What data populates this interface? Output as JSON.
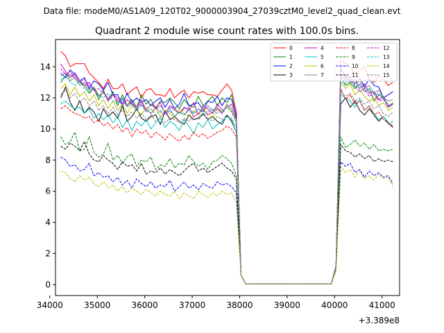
{
  "chart_data": {
    "type": "line",
    "suptitle": "Data file: modeM0/AS1A09_120T02_9000003904_27039cztM0_level2_quad_clean.evt",
    "title": "Quadrant 2 module wise count rates with 100.0s bins.",
    "xlabel": "",
    "ylabel": "",
    "x_offset_label": "+3.389e8",
    "xlim": [
      34120,
      41370
    ],
    "ylim": [
      -0.7,
      15.75
    ],
    "x_ticks": [
      34000,
      35000,
      36000,
      37000,
      38000,
      39000,
      40000,
      41000
    ],
    "x_tick_labels": [
      "34000",
      "35000",
      "36000",
      "37000",
      "38000",
      "39000",
      "40000",
      "41000"
    ],
    "y_ticks": [
      0,
      2,
      4,
      6,
      8,
      10,
      12,
      14
    ],
    "y_tick_labels": [
      "0",
      "2",
      "4",
      "6",
      "8",
      "10",
      "12",
      "14"
    ],
    "x_start": 34230,
    "x_step": 100,
    "gap_start": 37830,
    "gap_end": 39930,
    "legend_position": "upper right",
    "legend_columns": 4,
    "series": [
      {
        "name": "0",
        "color": "#ff0000",
        "dash": "solid",
        "values": [
          15.0,
          14.7,
          14.0,
          14.2,
          14.2,
          14.2,
          13.6,
          13.3,
          13.0,
          12.6,
          13.2,
          12.6,
          12.6,
          12.9,
          12.2,
          12.5,
          12.7,
          12.0,
          12.5,
          12.6,
          12.2,
          12.2,
          12.1,
          12.6,
          12.0,
          12.3,
          12.5,
          12.0,
          12.4,
          12.3,
          12.4,
          12.2,
          12.2,
          12.1,
          12.5,
          12.9,
          12.5,
          11.1,
          0.6
        ],
        "tail": [
          1.2,
          14.4,
          14.2,
          14.0,
          13.5,
          13.8,
          14.0,
          13.2,
          13.0,
          13.4,
          13.2,
          12.8,
          13.0
        ]
      },
      {
        "name": "1",
        "color": "#008000",
        "dash": "solid",
        "values": [
          13.0,
          13.4,
          13.5,
          13.3,
          13.0,
          12.8,
          12.3,
          12.6,
          11.9,
          12.5,
          11.8,
          12.4,
          11.5,
          12.2,
          11.5,
          11.9,
          11.4,
          12.2,
          11.6,
          11.9,
          11.3,
          11.8,
          11.7,
          12.0,
          11.7,
          11.3,
          11.9,
          11.5,
          11.4,
          12.1,
          11.5,
          11.8,
          12.1,
          11.5,
          12.0,
          11.7,
          12.2,
          10.8,
          0.6
        ],
        "tail": [
          1.2,
          13.3,
          12.8,
          13.0,
          12.6,
          12.9,
          12.4,
          12.6,
          11.8,
          12.2,
          12.0,
          11.4,
          11.7
        ]
      },
      {
        "name": "2",
        "color": "#0000ff",
        "dash": "solid",
        "values": [
          13.6,
          13.3,
          13.8,
          13.5,
          13.1,
          13.3,
          12.6,
          13.1,
          12.9,
          12.5,
          13.0,
          12.2,
          12.2,
          11.6,
          12.3,
          11.7,
          12.0,
          11.7,
          11.9,
          11.5,
          11.8,
          12.0,
          11.4,
          11.9,
          11.3,
          11.6,
          12.3,
          11.5,
          11.6,
          11.7,
          11.2,
          11.8,
          11.7,
          12.1,
          11.5,
          12.0,
          11.9,
          10.9,
          0.6
        ],
        "tail": [
          1.2,
          13.9,
          13.3,
          13.4,
          12.9,
          13.3,
          12.7,
          13.2,
          12.8,
          12.7,
          12.0,
          12.2,
          12.4
        ]
      },
      {
        "name": "3",
        "color": "#000000",
        "dash": "solid",
        "values": [
          12.0,
          12.7,
          11.7,
          11.2,
          11.8,
          11.0,
          11.4,
          11.1,
          10.5,
          11.3,
          10.8,
          11.1,
          10.7,
          11.5,
          10.5,
          10.8,
          11.3,
          10.7,
          10.5,
          10.8,
          10.9,
          10.3,
          11.2,
          10.6,
          10.8,
          10.5,
          10.3,
          10.9,
          10.6,
          10.7,
          11.0,
          10.6,
          10.8,
          10.5,
          10.3,
          10.9,
          10.5,
          9.8,
          0.6
        ],
        "tail": [
          1.1,
          11.6,
          12.0,
          11.4,
          11.8,
          11.2,
          10.9,
          11.3,
          10.9,
          10.5,
          10.8,
          10.4,
          10.1
        ]
      },
      {
        "name": "4",
        "color": "#c000c0",
        "dash": "solid",
        "values": [
          14.2,
          13.7,
          13.3,
          13.6,
          13.1,
          12.8,
          13.0,
          12.5,
          12.1,
          12.4,
          11.8,
          12.2,
          12.0,
          11.5,
          11.9,
          11.6,
          11.4,
          11.9,
          11.2,
          11.6,
          11.4,
          11.7,
          11.0,
          11.5,
          11.3,
          11.0,
          11.4,
          11.2,
          11.7,
          10.9,
          11.5,
          11.3,
          11.0,
          11.6,
          11.2,
          11.4,
          11.6,
          10.7,
          0.6
        ],
        "tail": [
          1.2,
          13.8,
          13.4,
          13.0,
          13.2,
          12.6,
          12.9,
          12.3,
          12.4,
          11.9,
          12.1,
          11.4,
          11.6
        ]
      },
      {
        "name": "5",
        "color": "#00bfbf",
        "dash": "solid",
        "values": [
          11.6,
          11.8,
          11.5,
          11.3,
          11.4,
          11.0,
          11.3,
          10.7,
          11.0,
          10.6,
          10.9,
          10.4,
          10.8,
          10.1,
          10.6,
          9.9,
          10.5,
          10.2,
          10.6,
          10.0,
          10.4,
          10.7,
          10.1,
          10.5,
          10.3,
          9.9,
          10.6,
          10.2,
          9.7,
          10.4,
          10.1,
          10.6,
          10.0,
          10.3,
          10.5,
          10.8,
          10.6,
          9.8,
          0.6
        ],
        "tail": [
          1.1,
          12.2,
          12.0,
          11.8,
          11.4,
          11.9,
          11.2,
          11.5,
          11.0,
          10.6,
          10.8,
          10.3,
          10.5
        ]
      },
      {
        "name": "6",
        "color": "#bfbf00",
        "dash": "solid",
        "values": [
          12.6,
          12.9,
          12.2,
          12.7,
          12.1,
          12.4,
          11.8,
          12.2,
          11.5,
          11.9,
          11.3,
          11.8,
          11.2,
          11.6,
          11.0,
          11.5,
          11.2,
          10.9,
          11.4,
          11.0,
          11.3,
          10.8,
          11.2,
          11.0,
          10.7,
          11.3,
          11.0,
          10.8,
          11.2,
          10.9,
          11.4,
          11.0,
          10.7,
          11.3,
          11.1,
          11.5,
          11.2,
          10.5,
          0.6
        ],
        "tail": [
          1.2,
          13.0,
          12.6,
          12.9,
          12.2,
          12.5,
          12.1,
          11.8,
          12.0,
          11.5,
          11.7,
          11.2,
          11.4
        ]
      },
      {
        "name": "7",
        "color": "#808080",
        "dash": "solid",
        "values": [
          13.4,
          13.6,
          13.1,
          13.3,
          12.8,
          13.0,
          12.5,
          12.7,
          12.1,
          12.4,
          11.9,
          12.2,
          11.7,
          12.0,
          11.5,
          11.8,
          11.4,
          11.7,
          11.2,
          11.6,
          11.3,
          11.5,
          11.1,
          11.4,
          11.2,
          11.0,
          11.3,
          11.4,
          11.0,
          11.3,
          11.1,
          11.5,
          11.2,
          11.4,
          11.0,
          11.6,
          11.3,
          10.6,
          0.6
        ],
        "tail": [
          1.2,
          13.5,
          13.2,
          13.4,
          12.9,
          13.1,
          12.6,
          12.8,
          12.3,
          12.5,
          12.0,
          11.8,
          11.9
        ]
      },
      {
        "name": "8",
        "color": "#ff0000",
        "dash": "dashed",
        "values": [
          11.3,
          11.5,
          11.2,
          11.0,
          10.9,
          10.7,
          10.8,
          10.4,
          10.6,
          10.2,
          10.4,
          10.0,
          10.3,
          9.8,
          10.1,
          9.5,
          10.0,
          9.7,
          9.9,
          9.4,
          9.8,
          9.6,
          9.3,
          9.7,
          9.4,
          9.2,
          9.6,
          9.3,
          9.8,
          9.5,
          9.7,
          9.4,
          9.6,
          9.8,
          9.9,
          10.2,
          10.0,
          9.5,
          0.6
        ],
        "tail": [
          1.1,
          12.6,
          11.9,
          12.2,
          11.6,
          11.8,
          11.2,
          11.5,
          10.9,
          11.1,
          10.6,
          10.4,
          10.2
        ]
      },
      {
        "name": "9",
        "color": "#008000",
        "dash": "dashed",
        "values": [
          9.5,
          9.0,
          9.2,
          9.8,
          8.6,
          8.7,
          9.5,
          8.5,
          8.2,
          8.4,
          9.1,
          8.0,
          8.3,
          7.8,
          8.2,
          8.4,
          7.6,
          8.0,
          7.9,
          8.2,
          7.4,
          7.7,
          7.6,
          8.1,
          7.5,
          7.8,
          7.7,
          8.3,
          7.9,
          7.6,
          7.8,
          7.4,
          7.9,
          8.0,
          8.3,
          8.1,
          7.8,
          7.0,
          0.6
        ],
        "tail": [
          1.0,
          9.5,
          8.8,
          9.0,
          9.3,
          8.9,
          9.1,
          8.7,
          9.0,
          8.6,
          8.7,
          8.6,
          8.7
        ]
      },
      {
        "name": "10",
        "color": "#0000ff",
        "dash": "dashed",
        "values": [
          8.2,
          8.0,
          7.6,
          7.7,
          7.3,
          7.4,
          7.8,
          7.0,
          7.2,
          6.9,
          7.0,
          6.6,
          6.9,
          6.4,
          6.7,
          6.2,
          6.8,
          6.5,
          6.3,
          6.6,
          6.2,
          6.4,
          6.3,
          6.7,
          6.0,
          6.3,
          6.6,
          6.2,
          6.4,
          6.1,
          6.5,
          6.3,
          6.2,
          6.6,
          6.4,
          6.5,
          6.3,
          5.9,
          0.6
        ],
        "tail": [
          1.0,
          7.9,
          7.6,
          7.8,
          7.2,
          7.4,
          6.9,
          7.3,
          7.0,
          7.2,
          6.9,
          7.0,
          6.5
        ]
      },
      {
        "name": "11",
        "color": "#000000",
        "dash": "dashed",
        "values": [
          8.9,
          8.7,
          9.1,
          8.9,
          8.6,
          9.2,
          8.4,
          8.0,
          7.9,
          8.3,
          8.0,
          7.8,
          7.4,
          7.9,
          7.6,
          7.7,
          7.3,
          7.8,
          7.1,
          7.3,
          7.2,
          7.5,
          7.1,
          7.4,
          7.2,
          7.0,
          7.3,
          7.6,
          7.8,
          7.3,
          7.5,
          7.2,
          7.4,
          7.6,
          7.8,
          7.5,
          7.3,
          6.8,
          0.6
        ],
        "tail": [
          1.0,
          9.0,
          8.6,
          8.5,
          8.2,
          8.4,
          8.1,
          8.3,
          7.9,
          8.1,
          7.9,
          8.0,
          7.9
        ]
      },
      {
        "name": "12",
        "color": "#c000c0",
        "dash": "dashed",
        "values": [
          13.9,
          13.5,
          13.7,
          13.3,
          13.0,
          13.2,
          12.8,
          12.5,
          12.6,
          12.3,
          12.0,
          12.2,
          11.8,
          11.9,
          11.5,
          11.7,
          11.3,
          11.6,
          11.2,
          11.0,
          11.4,
          11.1,
          10.9,
          11.2,
          10.8,
          11.1,
          10.9,
          11.3,
          10.8,
          11.0,
          11.2,
          10.9,
          11.1,
          11.3,
          11.0,
          11.4,
          11.1,
          10.4,
          0.6
        ],
        "tail": [
          1.2,
          13.4,
          13.1,
          13.3,
          12.8,
          12.4,
          12.6,
          12.1,
          12.3,
          11.8,
          11.9,
          11.5,
          11.6
        ]
      },
      {
        "name": "13",
        "color": "#00bfbf",
        "dash": "dashed",
        "values": [
          13.2,
          13.4,
          13.0,
          12.8,
          13.1,
          12.6,
          12.4,
          12.7,
          12.2,
          12.0,
          12.3,
          11.8,
          11.6,
          11.9,
          11.4,
          11.6,
          11.2,
          11.5,
          11.1,
          11.3,
          10.9,
          11.2,
          11.0,
          11.3,
          10.8,
          11.1,
          10.9,
          11.2,
          11.0,
          11.3,
          10.9,
          11.1,
          11.3,
          11.0,
          11.2,
          11.4,
          11.1,
          10.4,
          0.6
        ],
        "tail": [
          1.2,
          13.3,
          12.9,
          13.2,
          12.7,
          12.9,
          12.4,
          12.6,
          12.2,
          12.3,
          11.9,
          11.6,
          11.5
        ]
      },
      {
        "name": "14",
        "color": "#bfbf00",
        "dash": "dashed",
        "values": [
          7.3,
          7.2,
          6.8,
          6.6,
          7.0,
          6.7,
          6.9,
          6.5,
          6.3,
          6.6,
          6.2,
          6.4,
          6.0,
          6.3,
          5.9,
          6.2,
          6.0,
          5.8,
          6.1,
          5.9,
          5.7,
          6.0,
          5.8,
          5.7,
          6.0,
          5.5,
          5.9,
          5.7,
          5.5,
          6.0,
          5.8,
          5.6,
          5.9,
          5.7,
          6.0,
          5.8,
          5.9,
          5.3,
          0.6
        ],
        "tail": [
          0.9,
          7.6,
          7.2,
          7.4,
          6.9,
          7.3,
          6.8,
          7.0,
          6.7,
          7.1,
          6.8,
          6.9,
          6.3
        ]
      },
      {
        "name": "15",
        "color": "#808080",
        "dash": "dashed",
        "values": [
          12.2,
          12.5,
          12.0,
          12.3,
          11.7,
          12.0,
          11.5,
          11.8,
          11.2,
          11.5,
          11.0,
          11.4,
          10.9,
          11.2,
          10.8,
          11.1,
          10.7,
          11.0,
          10.6,
          10.9,
          10.5,
          10.8,
          10.4,
          10.7,
          10.6,
          10.4,
          10.7,
          10.5,
          10.8,
          10.6,
          10.9,
          10.7,
          10.5,
          10.8,
          10.6,
          10.9,
          10.7,
          10.1,
          0.6
        ],
        "tail": [
          1.1,
          12.4,
          12.1,
          12.3,
          11.8,
          12.0,
          11.6,
          11.8,
          11.3,
          11.5,
          11.0,
          10.8,
          11.1
        ]
      }
    ]
  }
}
